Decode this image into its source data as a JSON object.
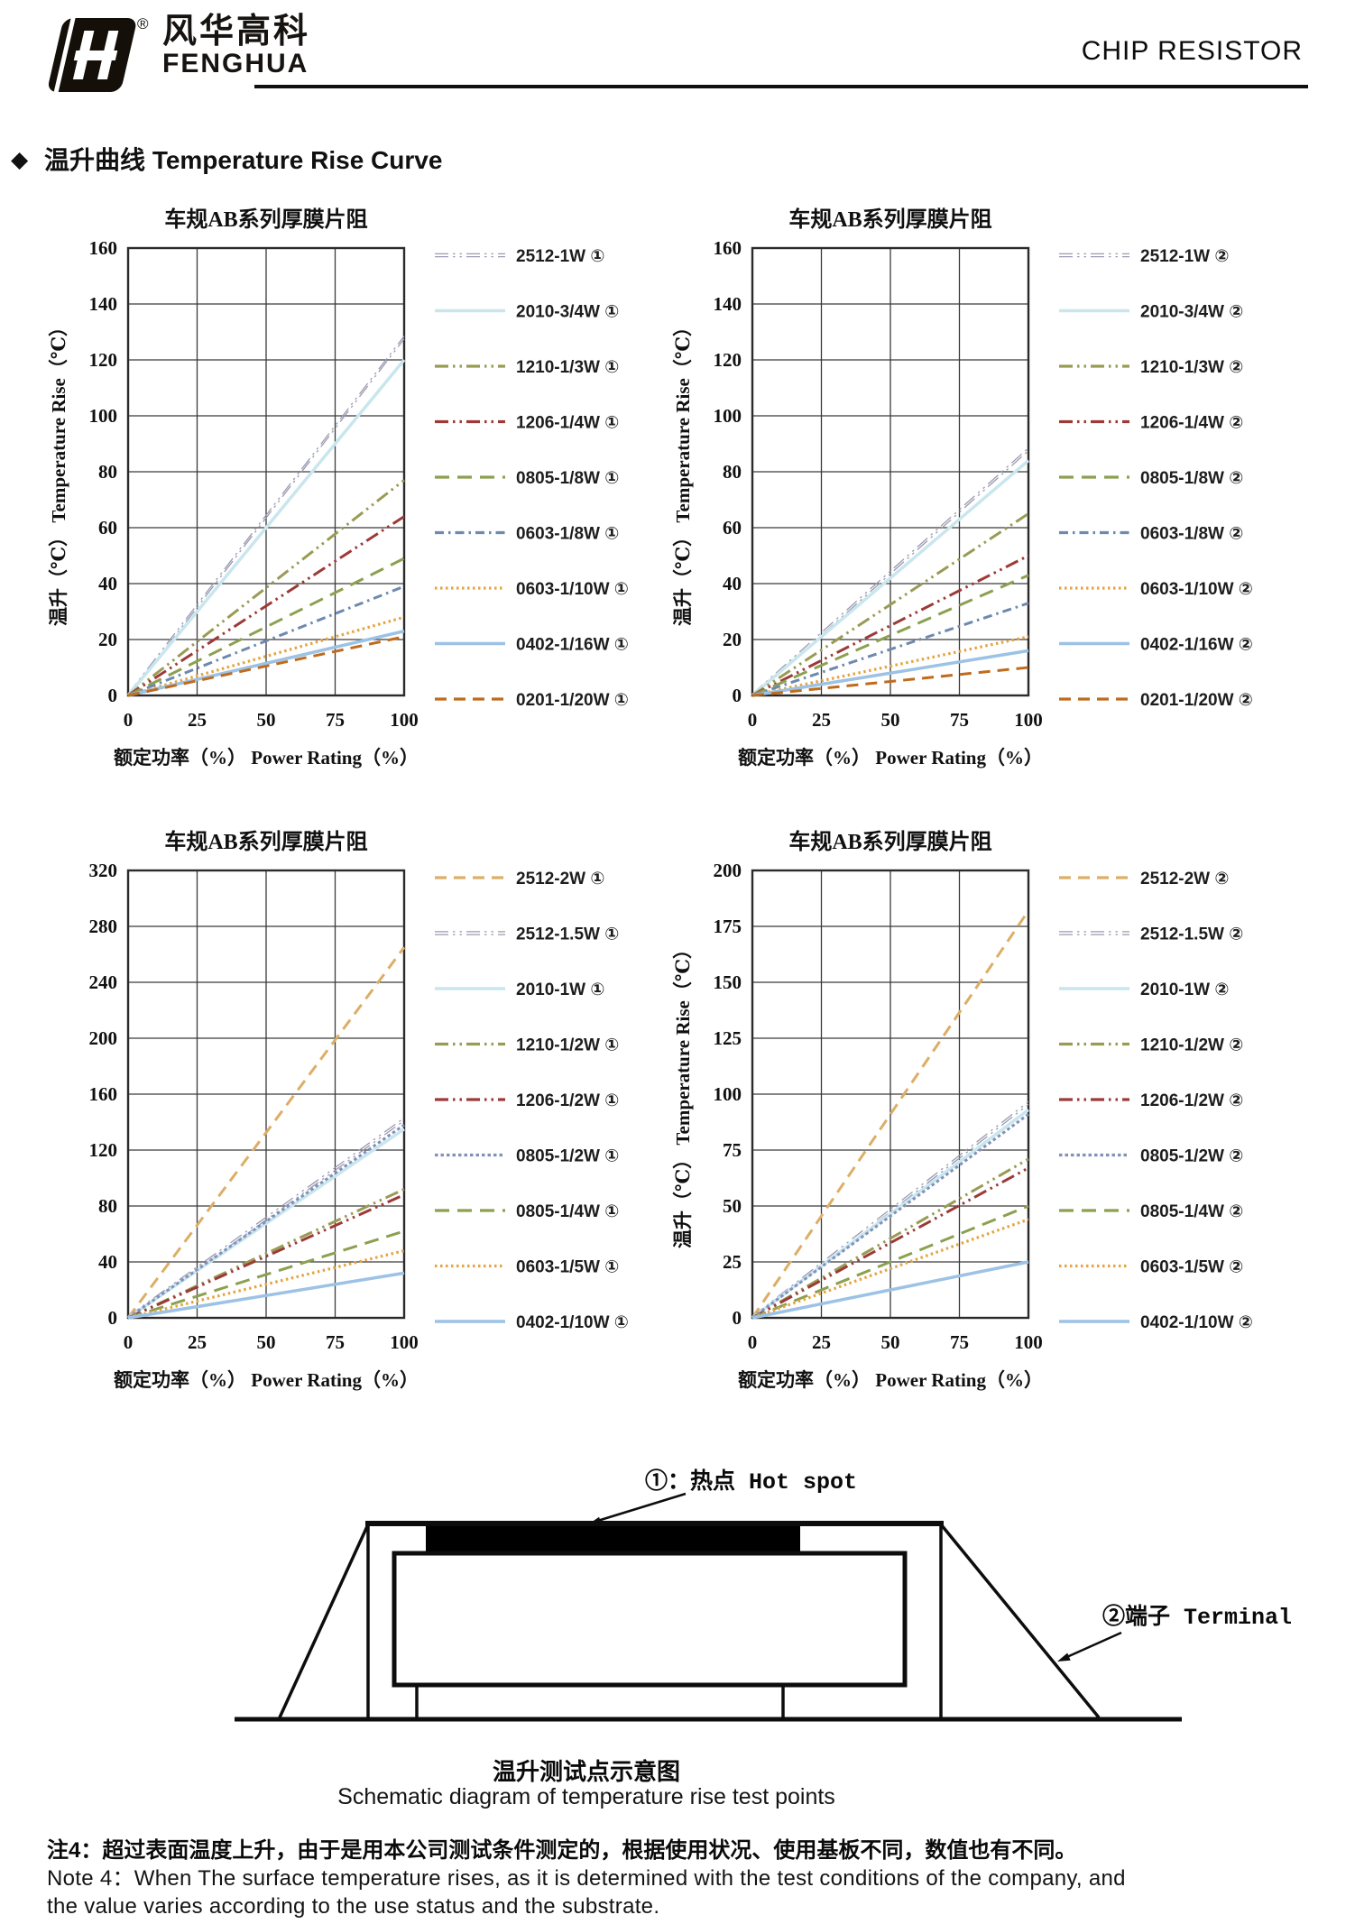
{
  "header": {
    "logo_cn": "风华高科",
    "logo_en": "FENGHUA",
    "reg": "®",
    "doc_title": "CHIP RESISTOR"
  },
  "section": {
    "bullet": "◆",
    "cn": "温升曲线",
    "en": "Temperature Rise Curve"
  },
  "chart_data": [
    {
      "type": "line",
      "title": "车规AB系列厚膜片阻",
      "ylabel": "温升（℃） Temperature Rise（℃）",
      "xlabel": "额定功率（%）  Power Rating（%）",
      "xlim": [
        0,
        100
      ],
      "ylim": [
        0,
        160
      ],
      "xticks": [
        0,
        25,
        50,
        75,
        100
      ],
      "yticks": [
        0,
        20,
        40,
        60,
        80,
        100,
        120,
        140,
        160
      ],
      "x": [
        0,
        100
      ],
      "grid": true,
      "legend_position": "right",
      "series": [
        {
          "name": "2512-1W ①",
          "values": [
            0,
            128
          ],
          "color": "#9a9ab2",
          "dash": "dashdotdot",
          "style": "double"
        },
        {
          "name": "2010-3/4W ①",
          "values": [
            0,
            120
          ],
          "color": "#c9e6ee",
          "dash": "solid"
        },
        {
          "name": "1210-1/3W ①",
          "values": [
            0,
            77
          ],
          "color": "#999b55",
          "dash": "dashdotdot"
        },
        {
          "name": "1206-1/4W ①",
          "values": [
            0,
            64
          ],
          "color": "#9c3a38",
          "dash": "dashdotdot"
        },
        {
          "name": "0805-1/8W ①",
          "values": [
            0,
            49
          ],
          "color": "#8ca050",
          "dash": "longdash"
        },
        {
          "name": "0603-1/8W ①",
          "values": [
            0,
            39
          ],
          "color": "#6d89b0",
          "dash": "dashdot"
        },
        {
          "name": "0603-1/10W ①",
          "values": [
            0,
            28
          ],
          "color": "#e5a440",
          "dash": "dotted"
        },
        {
          "name": "0402-1/16W ①",
          "values": [
            0,
            23
          ],
          "color": "#9cc2e5",
          "dash": "solid"
        },
        {
          "name": "0201-1/20W ①",
          "values": [
            0,
            21
          ],
          "color": "#bf6b1e",
          "dash": "dashed"
        }
      ]
    },
    {
      "type": "line",
      "title": "车规AB系列厚膜片阻",
      "ylabel": "温升（℃） Temperature Rise（℃）",
      "xlabel": "额定功率（%）  Power Rating（%）",
      "xlim": [
        0,
        100
      ],
      "ylim": [
        0,
        160
      ],
      "xticks": [
        0,
        25,
        50,
        75,
        100
      ],
      "yticks": [
        0,
        20,
        40,
        60,
        80,
        100,
        120,
        140,
        160
      ],
      "x": [
        0,
        100
      ],
      "grid": true,
      "legend_position": "right",
      "series": [
        {
          "name": "2512-1W ②",
          "values": [
            0,
            88
          ],
          "color": "#9a9ab2",
          "dash": "dashdotdot",
          "style": "double"
        },
        {
          "name": "2010-3/4W ②",
          "values": [
            0,
            84
          ],
          "color": "#c9e6ee",
          "dash": "solid"
        },
        {
          "name": "1210-1/3W ②",
          "values": [
            0,
            65
          ],
          "color": "#999b55",
          "dash": "dashdotdot"
        },
        {
          "name": "1206-1/4W ②",
          "values": [
            0,
            50
          ],
          "color": "#9c3a38",
          "dash": "dashdotdot"
        },
        {
          "name": "0805-1/8W ②",
          "values": [
            0,
            43
          ],
          "color": "#8ca050",
          "dash": "longdash"
        },
        {
          "name": "0603-1/8W ②",
          "values": [
            0,
            33
          ],
          "color": "#6d89b0",
          "dash": "dashdot"
        },
        {
          "name": "0603-1/10W ②",
          "values": [
            0,
            21
          ],
          "color": "#e5a440",
          "dash": "dotted"
        },
        {
          "name": "0402-1/16W ②",
          "values": [
            0,
            16
          ],
          "color": "#9cc2e5",
          "dash": "solid"
        },
        {
          "name": "0201-1/20W ②",
          "values": [
            0,
            10
          ],
          "color": "#bf6b1e",
          "dash": "dashed"
        }
      ]
    },
    {
      "type": "line",
      "title": "车规AB系列厚膜片阻",
      "ylabel": "",
      "xlabel": "额定功率（%）  Power Rating（%）",
      "xlim": [
        0,
        100
      ],
      "ylim": [
        0,
        320
      ],
      "xticks": [
        0,
        25,
        50,
        75,
        100
      ],
      "yticks": [
        0,
        40,
        80,
        120,
        160,
        200,
        240,
        280,
        320
      ],
      "x": [
        0,
        100
      ],
      "grid": true,
      "legend_position": "right",
      "series": [
        {
          "name": "2512-2W ①",
          "values": [
            0,
            265
          ],
          "color": "#dcae66",
          "dash": "dashed"
        },
        {
          "name": "2512-1.5W ①",
          "values": [
            0,
            142
          ],
          "color": "#9a9ab2",
          "dash": "dashdotdot",
          "style": "double"
        },
        {
          "name": "2010-1W ①",
          "values": [
            0,
            135
          ],
          "color": "#c9e6ee",
          "dash": "solid"
        },
        {
          "name": "1210-1/2W ①",
          "values": [
            0,
            92
          ],
          "color": "#999b55",
          "dash": "dashdotdot"
        },
        {
          "name": "1206-1/2W ①",
          "values": [
            0,
            88
          ],
          "color": "#9c3a38",
          "dash": "dashdotdot"
        },
        {
          "name": "0805-1/2W ①",
          "values": [
            0,
            138
          ],
          "color": "#8291ba",
          "dash": "densedotted"
        },
        {
          "name": "0805-1/4W ①",
          "values": [
            0,
            62
          ],
          "color": "#8ca050",
          "dash": "longdash"
        },
        {
          "name": "0603-1/5W ①",
          "values": [
            0,
            48
          ],
          "color": "#e5a440",
          "dash": "dotted"
        },
        {
          "name": "0402-1/10W ①",
          "values": [
            0,
            32
          ],
          "color": "#9cc2e5",
          "dash": "solid"
        }
      ]
    },
    {
      "type": "line",
      "title": "车规AB系列厚膜片阻",
      "ylabel": "温升（℃） Temperature Rise（℃）",
      "xlabel": "额定功率（%）  Power Rating（%）",
      "xlim": [
        0,
        100
      ],
      "ylim": [
        0,
        200
      ],
      "xticks": [
        0,
        25,
        50,
        75,
        100
      ],
      "yticks": [
        0,
        25,
        50,
        75,
        100,
        125,
        150,
        175,
        200
      ],
      "x": [
        0,
        100
      ],
      "grid": true,
      "legend_position": "right",
      "series": [
        {
          "name": "2512-2W ②",
          "values": [
            0,
            182
          ],
          "color": "#dcae66",
          "dash": "dashed"
        },
        {
          "name": "2512-1.5W ②",
          "values": [
            0,
            96
          ],
          "color": "#9a9ab2",
          "dash": "dashdotdot",
          "style": "double"
        },
        {
          "name": "2010-1W ②",
          "values": [
            0,
            93
          ],
          "color": "#c9e6ee",
          "dash": "solid"
        },
        {
          "name": "1210-1/2W ②",
          "values": [
            0,
            71
          ],
          "color": "#999b55",
          "dash": "dashdotdot"
        },
        {
          "name": "1206-1/2W ②",
          "values": [
            0,
            67
          ],
          "color": "#9c3a38",
          "dash": "dashdotdot"
        },
        {
          "name": "0805-1/2W ②",
          "values": [
            0,
            91
          ],
          "color": "#8291ba",
          "dash": "densedotted"
        },
        {
          "name": "0805-1/4W ②",
          "values": [
            0,
            50
          ],
          "color": "#8ca050",
          "dash": "longdash"
        },
        {
          "name": "0603-1/5W ②",
          "values": [
            0,
            44
          ],
          "color": "#e5a440",
          "dash": "dotted"
        },
        {
          "name": "0402-1/10W ②",
          "values": [
            0,
            25
          ],
          "color": "#9cc2e5",
          "dash": "solid"
        }
      ]
    }
  ],
  "schematic": {
    "label_hotspot": "①：热点  Hot spot",
    "label_terminal": "②端子 Terminal",
    "caption_cn": "温升测试点示意图",
    "caption_en": "Schematic diagram of temperature rise test points"
  },
  "notes": {
    "cn": "注4：超过表面温度上升，由于是用本公司测试条件测定的，根据使用状况、使用基板不同，数值也有不同。",
    "en_line1": "Note 4：When The surface temperature rises, as it is determined with the test conditions of the company, and",
    "en_line2": "the value varies according to the use status and the substrate."
  }
}
